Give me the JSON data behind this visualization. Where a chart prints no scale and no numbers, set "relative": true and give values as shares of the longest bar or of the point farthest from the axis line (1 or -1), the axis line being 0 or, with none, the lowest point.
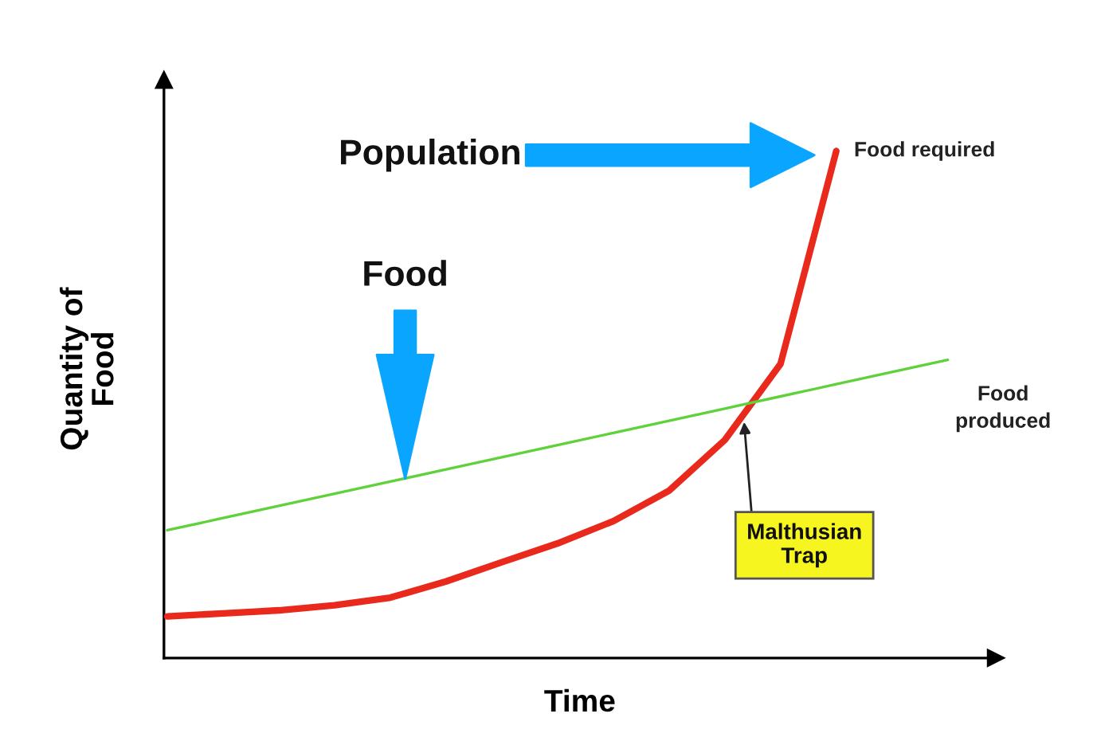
{
  "chart_data": {
    "type": "line",
    "relative": true,
    "xlabel": "Time",
    "ylabel": "Quantity of Food",
    "categories": [
      null,
      null,
      null,
      null,
      null,
      null,
      null,
      null,
      null,
      null,
      null,
      null,
      null,
      null,
      null
    ],
    "series": [
      {
        "name": "Food required",
        "color": "#e8291c",
        "values": [
          0.082,
          0.088,
          0.094,
          0.104,
          0.119,
          0.151,
          0.189,
          0.226,
          0.27,
          0.33,
          0.43,
          0.58,
          1,
          null,
          null
        ]
      },
      {
        "name": "Food produced",
        "color": "#5fd13b",
        "values": [
          0.252,
          0.276,
          0.3,
          0.324,
          0.348,
          0.372,
          0.396,
          0.42,
          0.444,
          0.468,
          0.492,
          0.516,
          0.54,
          0.564,
          0.588
        ]
      }
    ],
    "annotations": [
      "Population",
      "Food",
      "Malthusian Trap"
    ],
    "marker": "none",
    "line_style": "solid"
  }
}
